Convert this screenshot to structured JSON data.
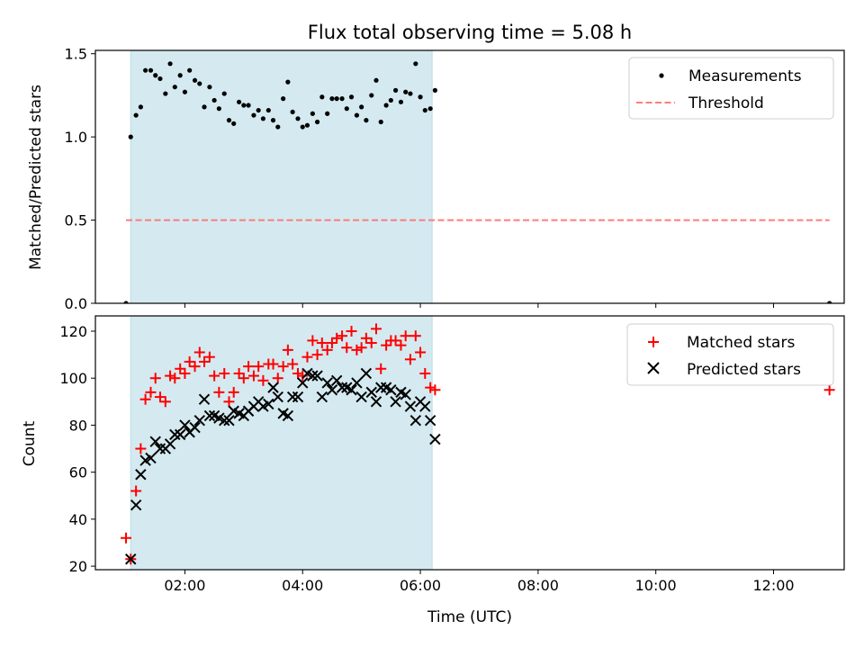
{
  "colors": {
    "span": "#d4eaf0",
    "span_edge": "#b7dbe6",
    "measurement": "#000000",
    "threshold": "#ff7b7b",
    "matched": "#ff0000",
    "predicted": "#000000"
  },
  "chart_data": [
    {
      "type": "scatter",
      "title": "Flux total observing time = 5.08 h",
      "xlabel": "",
      "ylabel": "Matched/Predicted stars",
      "xlim": [
        0.48,
        13.2
      ],
      "ylim": [
        0,
        1.52
      ],
      "yticks": [
        0,
        0.5,
        1.0,
        1.5
      ],
      "ytick_labels": [
        "0.0",
        "0.5",
        "1.0",
        "1.5"
      ],
      "xticks": [
        2,
        4,
        6,
        8,
        10,
        12
      ],
      "shaded_span": [
        1.08,
        6.2
      ],
      "legend": [
        "Measurements",
        "Threshold"
      ],
      "legend_position": "upper right",
      "threshold": {
        "name": "Threshold",
        "value": 0.5,
        "x_range": [
          1.0,
          12.95
        ]
      },
      "series": [
        {
          "name": "Measurements",
          "points": [
            [
              1.0,
              0.0
            ],
            [
              1.08,
              1.0
            ],
            [
              1.17,
              1.13
            ],
            [
              1.25,
              1.18
            ],
            [
              1.33,
              1.4
            ],
            [
              1.42,
              1.4
            ],
            [
              1.5,
              1.37
            ],
            [
              1.58,
              1.35
            ],
            [
              1.67,
              1.26
            ],
            [
              1.75,
              1.44
            ],
            [
              1.83,
              1.3
            ],
            [
              1.92,
              1.37
            ],
            [
              2.0,
              1.27
            ],
            [
              2.08,
              1.4
            ],
            [
              2.17,
              1.34
            ],
            [
              2.25,
              1.32
            ],
            [
              2.33,
              1.18
            ],
            [
              2.42,
              1.3
            ],
            [
              2.5,
              1.22
            ],
            [
              2.58,
              1.17
            ],
            [
              2.67,
              1.26
            ],
            [
              2.75,
              1.1
            ],
            [
              2.83,
              1.08
            ],
            [
              2.92,
              1.21
            ],
            [
              3.0,
              1.19
            ],
            [
              3.08,
              1.19
            ],
            [
              3.17,
              1.13
            ],
            [
              3.25,
              1.16
            ],
            [
              3.33,
              1.11
            ],
            [
              3.42,
              1.16
            ],
            [
              3.5,
              1.1
            ],
            [
              3.58,
              1.06
            ],
            [
              3.67,
              1.23
            ],
            [
              3.75,
              1.33
            ],
            [
              3.83,
              1.15
            ],
            [
              3.92,
              1.11
            ],
            [
              4.0,
              1.06
            ],
            [
              4.08,
              1.07
            ],
            [
              4.17,
              1.14
            ],
            [
              4.25,
              1.09
            ],
            [
              4.33,
              1.24
            ],
            [
              4.42,
              1.14
            ],
            [
              4.5,
              1.23
            ],
            [
              4.58,
              1.23
            ],
            [
              4.67,
              1.23
            ],
            [
              4.75,
              1.17
            ],
            [
              4.83,
              1.24
            ],
            [
              4.92,
              1.13
            ],
            [
              5.0,
              1.18
            ],
            [
              5.08,
              1.1
            ],
            [
              5.17,
              1.25
            ],
            [
              5.25,
              1.34
            ],
            [
              5.33,
              1.09
            ],
            [
              5.42,
              1.19
            ],
            [
              5.5,
              1.22
            ],
            [
              5.58,
              1.28
            ],
            [
              5.67,
              1.21
            ],
            [
              5.75,
              1.27
            ],
            [
              5.83,
              1.26
            ],
            [
              5.92,
              1.44
            ],
            [
              6.0,
              1.24
            ],
            [
              6.08,
              1.16
            ],
            [
              6.17,
              1.17
            ],
            [
              6.25,
              1.28
            ],
            [
              12.95,
              0.0
            ]
          ]
        }
      ]
    },
    {
      "type": "scatter",
      "title": "",
      "xlabel": "Time (UTC)",
      "ylabel": "Count",
      "xlim": [
        0.48,
        13.2
      ],
      "ylim": [
        18.5,
        126.5
      ],
      "yticks": [
        20,
        40,
        60,
        80,
        100,
        120
      ],
      "xticks": [
        2,
        4,
        6,
        8,
        10,
        12
      ],
      "xtick_labels": [
        "02:00",
        "04:00",
        "06:00",
        "08:00",
        "10:00",
        "12:00"
      ],
      "shaded_span": [
        1.08,
        6.2
      ],
      "legend": [
        "Matched stars",
        "Predicted stars"
      ],
      "legend_position": "upper right",
      "series": [
        {
          "name": "Matched stars",
          "marker": "plus",
          "points": [
            [
              1.0,
              32
            ],
            [
              1.08,
              23
            ],
            [
              1.17,
              52
            ],
            [
              1.25,
              70
            ],
            [
              1.33,
              91
            ],
            [
              1.42,
              94
            ],
            [
              1.5,
              100
            ],
            [
              1.58,
              92
            ],
            [
              1.67,
              90
            ],
            [
              1.75,
              101
            ],
            [
              1.83,
              100
            ],
            [
              1.92,
              104
            ],
            [
              2.0,
              102
            ],
            [
              2.08,
              107
            ],
            [
              2.17,
              105
            ],
            [
              2.25,
              111
            ],
            [
              2.33,
              107
            ],
            [
              2.42,
              109
            ],
            [
              2.5,
              101
            ],
            [
              2.58,
              94
            ],
            [
              2.67,
              102
            ],
            [
              2.75,
              90
            ],
            [
              2.83,
              94
            ],
            [
              2.92,
              102
            ],
            [
              3.0,
              100
            ],
            [
              3.08,
              105
            ],
            [
              3.17,
              101
            ],
            [
              3.25,
              105
            ],
            [
              3.33,
              99
            ],
            [
              3.42,
              106
            ],
            [
              3.5,
              106
            ],
            [
              3.58,
              100
            ],
            [
              3.67,
              105
            ],
            [
              3.75,
              112
            ],
            [
              3.83,
              106
            ],
            [
              3.92,
              102
            ],
            [
              4.0,
              101
            ],
            [
              4.08,
              109
            ],
            [
              4.17,
              116
            ],
            [
              4.25,
              110
            ],
            [
              4.33,
              115
            ],
            [
              4.42,
              112
            ],
            [
              4.5,
              115
            ],
            [
              4.58,
              117
            ],
            [
              4.67,
              118
            ],
            [
              4.75,
              113
            ],
            [
              4.83,
              120
            ],
            [
              4.92,
              112
            ],
            [
              5.0,
              113
            ],
            [
              5.08,
              117
            ],
            [
              5.17,
              115
            ],
            [
              5.25,
              121
            ],
            [
              5.33,
              104
            ],
            [
              5.42,
              114
            ],
            [
              5.5,
              116
            ],
            [
              5.58,
              116
            ],
            [
              5.67,
              114
            ],
            [
              5.75,
              118
            ],
            [
              5.83,
              108
            ],
            [
              5.92,
              118
            ],
            [
              6.0,
              111
            ],
            [
              6.08,
              102
            ],
            [
              6.17,
              96
            ],
            [
              6.25,
              95
            ],
            [
              12.95,
              95
            ]
          ]
        },
        {
          "name": "Predicted stars",
          "marker": "x",
          "points": [
            [
              1.08,
              23
            ],
            [
              1.17,
              46
            ],
            [
              1.25,
              59
            ],
            [
              1.33,
              65
            ],
            [
              1.42,
              66
            ],
            [
              1.5,
              73
            ],
            [
              1.58,
              70
            ],
            [
              1.67,
              70
            ],
            [
              1.75,
              72
            ],
            [
              1.83,
              76
            ],
            [
              1.92,
              76
            ],
            [
              2.0,
              80
            ],
            [
              2.08,
              77
            ],
            [
              2.17,
              79
            ],
            [
              2.25,
              82
            ],
            [
              2.33,
              91
            ],
            [
              2.42,
              84
            ],
            [
              2.5,
              84
            ],
            [
              2.58,
              83
            ],
            [
              2.67,
              82
            ],
            [
              2.75,
              82
            ],
            [
              2.83,
              86
            ],
            [
              2.92,
              85
            ],
            [
              3.0,
              84
            ],
            [
              3.08,
              86
            ],
            [
              3.17,
              88
            ],
            [
              3.25,
              90
            ],
            [
              3.33,
              88
            ],
            [
              3.42,
              89
            ],
            [
              3.5,
              96
            ],
            [
              3.58,
              92
            ],
            [
              3.67,
              85
            ],
            [
              3.75,
              84
            ],
            [
              3.83,
              92
            ],
            [
              3.92,
              92
            ],
            [
              4.0,
              98
            ],
            [
              4.08,
              102
            ],
            [
              4.17,
              101
            ],
            [
              4.25,
              101
            ],
            [
              4.33,
              92
            ],
            [
              4.42,
              98
            ],
            [
              4.5,
              95
            ],
            [
              4.58,
              99
            ],
            [
              4.67,
              96
            ],
            [
              4.75,
              96
            ],
            [
              4.83,
              95
            ],
            [
              4.92,
              98
            ],
            [
              5.0,
              92
            ],
            [
              5.08,
              102
            ],
            [
              5.17,
              94
            ],
            [
              5.25,
              90
            ],
            [
              5.33,
              96
            ],
            [
              5.42,
              96
            ],
            [
              5.5,
              95
            ],
            [
              5.58,
              90
            ],
            [
              5.67,
              94
            ],
            [
              5.75,
              93
            ],
            [
              5.83,
              88
            ],
            [
              5.92,
              82
            ],
            [
              6.0,
              90
            ],
            [
              6.08,
              88
            ],
            [
              6.17,
              82
            ],
            [
              6.25,
              74
            ]
          ]
        }
      ]
    }
  ]
}
